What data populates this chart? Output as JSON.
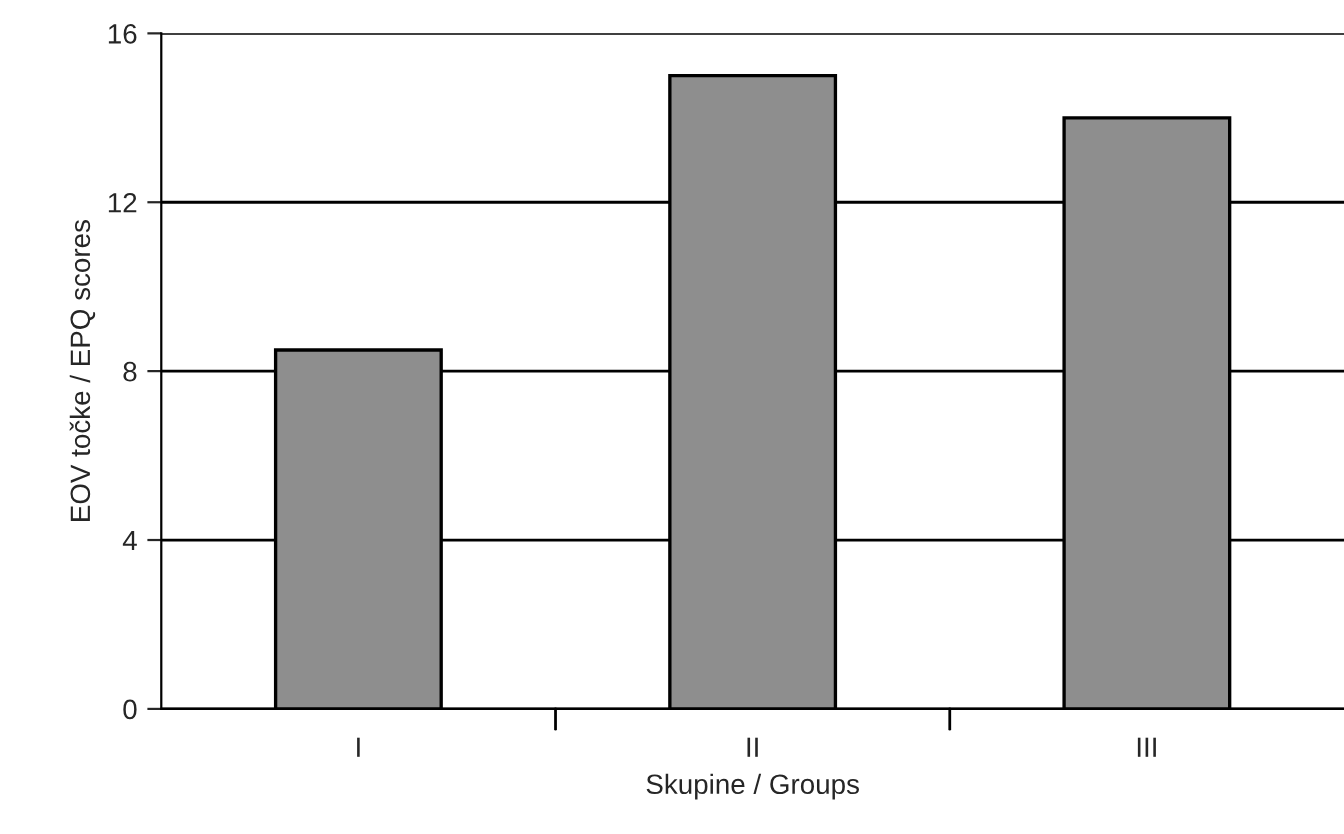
{
  "chart_data": {
    "type": "bar",
    "xlabel": "Skupine / Groups",
    "ylabel": "EOV točke / EPQ scores",
    "categories": [
      "I",
      "II",
      "III"
    ],
    "values": [
      8.5,
      15.0,
      14.0
    ],
    "color": "#8e8e8e",
    "ylim": [
      0,
      16
    ],
    "yticks": [
      0,
      4,
      8,
      12,
      16
    ],
    "grid": "y",
    "legend": false
  }
}
